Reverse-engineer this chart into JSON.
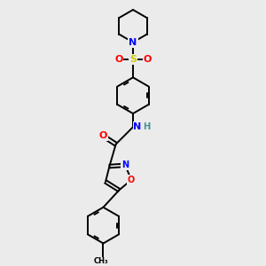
{
  "bg_color": "#ebebeb",
  "bond_color": "#000000",
  "atom_colors": {
    "N": "#0000ff",
    "O": "#ff0000",
    "S": "#cccc00",
    "H": "#4a9090",
    "C": "#000000"
  },
  "lw": 1.4,
  "fs": 8,
  "R_hex": 0.4,
  "R_pip": 0.36,
  "R_iso": 0.3
}
